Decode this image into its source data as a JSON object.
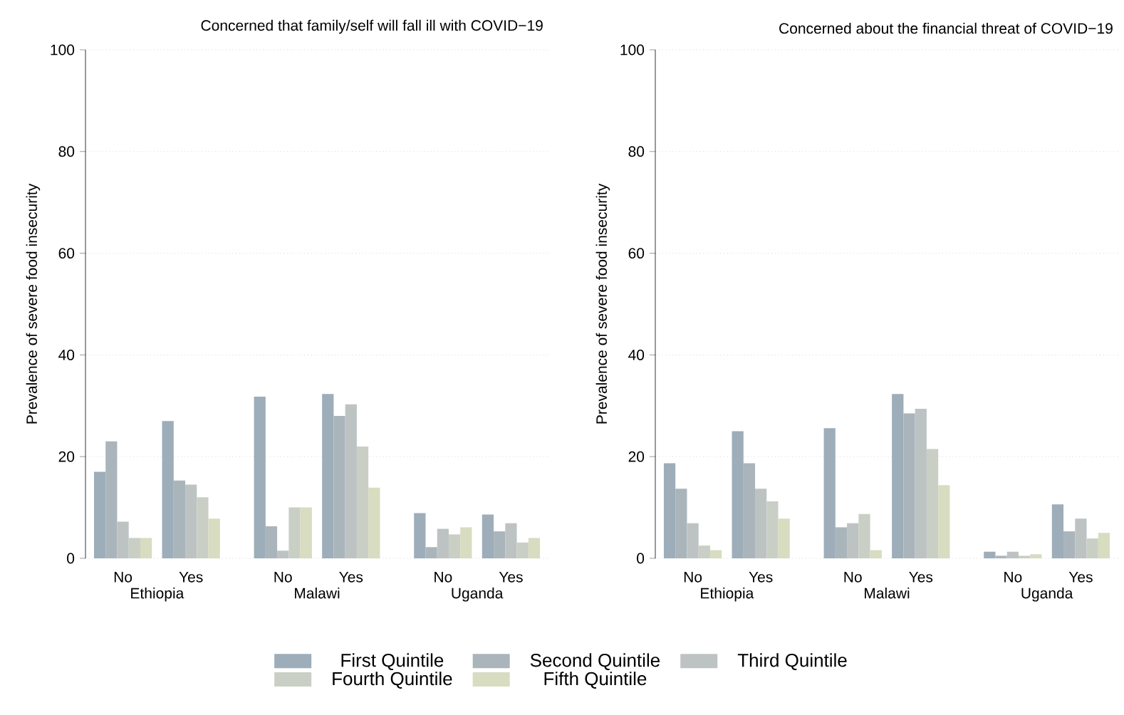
{
  "chart_data": [
    {
      "type": "bar",
      "title": "Concerned that family/self will fall ill with COVID−19",
      "ylabel": "Prevalence of severe food insecurity",
      "categories": [
        "No",
        "Yes",
        "No",
        "Yes",
        "No",
        "Yes"
      ],
      "annotations": [
        "Ethiopia",
        "Malawi",
        "Uganda"
      ],
      "series": [
        {
          "name": "First Quintile",
          "color": "#9dadb9",
          "values": [
            17,
            27,
            31.8,
            32.3,
            8.9,
            8.6
          ]
        },
        {
          "name": "Second Quintile",
          "color": "#aab5bb",
          "values": [
            23,
            15.3,
            6.3,
            28,
            2.2,
            5.3
          ]
        },
        {
          "name": "Third Quintile",
          "color": "#bdc3c3",
          "values": [
            7.2,
            14.5,
            1.5,
            30.3,
            5.8,
            6.9
          ]
        },
        {
          "name": "Fourth Quintile",
          "color": "#c9cfc5",
          "values": [
            4,
            12,
            10,
            22,
            4.7,
            3.1
          ]
        },
        {
          "name": "Fifth Quintile",
          "color": "#d8dcc0",
          "values": [
            4,
            7.8,
            10,
            13.9,
            6.1,
            4
          ]
        }
      ],
      "ylim": [
        0,
        100
      ],
      "yticks": [
        0,
        20,
        40,
        60,
        80,
        100
      ],
      "grid": "y",
      "legend": "bottom"
    },
    {
      "type": "bar",
      "title": "Concerned about the financial threat of COVID−19",
      "ylabel": "Prevalence of severe food insecurity",
      "categories": [
        "No",
        "Yes",
        "No",
        "Yes",
        "No",
        "Yes"
      ],
      "annotations": [
        "Ethiopia",
        "Malawi",
        "Uganda"
      ],
      "series": [
        {
          "color": "#9dadb9",
          "values": [
            18.7,
            25,
            25.6,
            32.3,
            1.3,
            10.6
          ]
        },
        {
          "color": "#aab5bb",
          "values": [
            13.7,
            18.7,
            6.1,
            28.5,
            0.5,
            5.3
          ]
        },
        {
          "color": "#bdc3c3",
          "values": [
            6.9,
            13.7,
            6.9,
            29.4,
            1.3,
            7.8
          ]
        },
        {
          "color": "#c9cfc5",
          "values": [
            2.5,
            11.2,
            8.7,
            21.5,
            0.5,
            3.9
          ]
        },
        {
          "color": "#d8dcc0",
          "values": [
            1.6,
            7.8,
            1.6,
            14.4,
            0.8,
            5
          ]
        }
      ],
      "ylim": [
        0,
        100
      ],
      "yticks": [
        0,
        20,
        40,
        60,
        80,
        100
      ],
      "grid": "y"
    }
  ]
}
